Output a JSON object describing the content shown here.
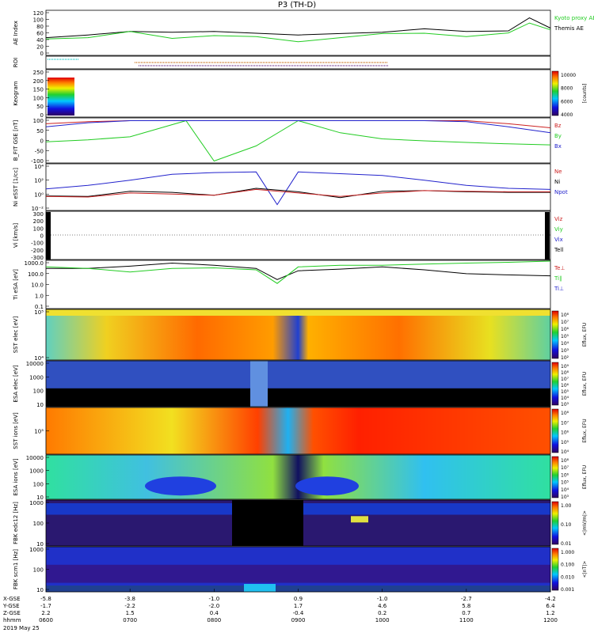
{
  "title": "P3 (TH-D)",
  "date_label": "2019 May 25",
  "x_axis": {
    "rows": [
      {
        "label": "X-GSE",
        "values": [
          "-5.8",
          "-3.8",
          "-1.0",
          "0.9",
          "-1.0",
          "-2.7",
          "-4.2"
        ]
      },
      {
        "label": "Y-GSE",
        "values": [
          "-1.7",
          "-2.2",
          "-2.0",
          "1.7",
          "4.6",
          "5.8",
          "6.4"
        ]
      },
      {
        "label": "Z-GSE",
        "values": [
          "2.2",
          "1.5",
          "0.4",
          "-0.4",
          "0.2",
          "0.7",
          "1.2"
        ]
      },
      {
        "label": "hhmm",
        "values": [
          "0600",
          "0700",
          "0800",
          "0900",
          "1000",
          "1100",
          "1200"
        ]
      }
    ]
  },
  "panels": [
    {
      "id": "ae",
      "ylabel": "AE Index",
      "ticks": [
        "120",
        "100",
        "80",
        "60",
        "40",
        "20",
        "0"
      ],
      "legend": [
        {
          "text": "Kyoto proxy AE",
          "color": "#22cc22"
        },
        {
          "text": "Themis AE",
          "color": "#000000"
        }
      ]
    },
    {
      "id": "roi",
      "ylabel": "ROI",
      "ticks": [],
      "legend": []
    },
    {
      "id": "keogram",
      "ylabel": "Keogram",
      "ticks": [
        "250",
        "200",
        "150",
        "100",
        "50",
        "0"
      ],
      "legend": [],
      "colorbar": {
        "ticks": [
          "10000",
          "8000",
          "6000",
          "4000"
        ],
        "label": "[counts]"
      }
    },
    {
      "id": "bfit",
      "ylabel": "B_FIT GSE [nT]",
      "ticks": [
        "100",
        "50",
        "0",
        "-50",
        "-100"
      ],
      "legend": [
        {
          "text": "Bz",
          "color": "#cc2222"
        },
        {
          "text": "By",
          "color": "#22cc22"
        },
        {
          "text": "Bx",
          "color": "#2222cc"
        }
      ]
    },
    {
      "id": "ni",
      "ylabel": "Ni eSST [1/cc]",
      "ticks": [
        "10⁴",
        "10²",
        "10⁰",
        "10⁻²"
      ],
      "legend": [
        {
          "text": "Ne",
          "color": "#cc2222"
        },
        {
          "text": "Ni",
          "color": "#000000"
        },
        {
          "text": "Npot",
          "color": "#2222cc"
        }
      ]
    },
    {
      "id": "vi",
      "ylabel": "Vi [km/s]",
      "ticks": [
        "300",
        "200",
        "100",
        "0",
        "-100",
        "-200",
        "-300"
      ],
      "legend": [
        {
          "text": "Viz",
          "color": "#cc2222"
        },
        {
          "text": "Viy",
          "color": "#22cc22"
        },
        {
          "text": "Vix",
          "color": "#2222cc"
        },
        {
          "text": "Tell",
          "color": "#000000"
        }
      ]
    },
    {
      "id": "ti",
      "ylabel": "Ti eSA [eV]",
      "ticks": [
        "1000.0",
        "100.0",
        "10.0",
        "1.0",
        "0.1"
      ],
      "legend": [
        {
          "text": "Te⊥",
          "color": "#cc2222"
        },
        {
          "text": "Ti∥",
          "color": "#22cc22"
        },
        {
          "text": "Ti⊥",
          "color": "#2222cc"
        }
      ]
    },
    {
      "id": "sst-e",
      "ylabel": "SST elec [eV]",
      "ticks": [
        "10⁵",
        "10⁴"
      ],
      "legend": [],
      "colorbar": {
        "ticks": [
          "10⁸",
          "10⁷",
          "10⁶",
          "10⁵",
          "10⁴",
          "10³",
          "10²"
        ],
        "label": "Eflux, EFU"
      }
    },
    {
      "id": "esa-e",
      "ylabel": "ESA elec [eV]",
      "ticks": [
        "10000",
        "1000",
        "100",
        "10"
      ],
      "legend": [],
      "colorbar": {
        "ticks": [
          "10⁹",
          "10⁸",
          "10⁷",
          "10⁶",
          "10⁵",
          "10⁴",
          "10³"
        ],
        "label": "Eflux, EFU"
      }
    },
    {
      "id": "sst-i",
      "ylabel": "SST ions [eV]",
      "ticks": [
        "10⁵"
      ],
      "legend": [],
      "colorbar": {
        "ticks": [
          "10⁸",
          "10⁷",
          "10⁶",
          "10⁵",
          "10⁴"
        ],
        "label": "Eflux, EFU"
      }
    },
    {
      "id": "esa-i",
      "ylabel": "ESA ions [eV]",
      "ticks": [
        "10000",
        "1000",
        "100",
        "10"
      ],
      "legend": [],
      "colorbar": {
        "ticks": [
          "10⁸",
          "10⁷",
          "10⁶",
          "10⁵",
          "10⁴",
          "10³"
        ],
        "label": "Eflux, EFU"
      }
    },
    {
      "id": "fbk-e",
      "ylabel": "FBK edc12 [Hz]",
      "ticks": [
        "1000",
        "100",
        "10"
      ],
      "legend": [],
      "colorbar": {
        "ticks": [
          "1.00",
          "0.10",
          "0.01"
        ],
        "label": "<|mV/m|>"
      }
    },
    {
      "id": "fbk-b",
      "ylabel": "FBK scm1 [Hz]",
      "ticks": [
        "1000",
        "100",
        "10"
      ],
      "legend": [],
      "colorbar": {
        "ticks": [
          "1.000",
          "0.100",
          "0.010",
          "0.001"
        ],
        "label": "<|nT|>"
      }
    }
  ],
  "chart_data": {
    "type": "line",
    "title": "P3 (TH-D)",
    "x_ticks": [
      "0600",
      "0700",
      "0800",
      "0900",
      "1000",
      "1100",
      "1200"
    ],
    "series": [
      {
        "name": "Themis AE",
        "panel": "ae",
        "x": [
          "0600",
          "0630",
          "0700",
          "0730",
          "0800",
          "0830",
          "0900",
          "0930",
          "1000",
          "1030",
          "1100",
          "1130",
          "1145",
          "1200"
        ],
        "values": [
          52,
          60,
          70,
          68,
          70,
          65,
          60,
          64,
          68,
          78,
          70,
          72,
          110,
          80
        ]
      },
      {
        "name": "Kyoto proxy AE",
        "panel": "ae",
        "x": [
          "0600",
          "0630",
          "0700",
          "0730",
          "0800",
          "0830",
          "0900",
          "0930",
          "1000",
          "1030",
          "1100",
          "1130",
          "1145",
          "1200"
        ],
        "values": [
          48,
          52,
          70,
          50,
          58,
          55,
          40,
          52,
          64,
          65,
          55,
          66,
          95,
          75
        ]
      },
      {
        "name": "Bz",
        "panel": "bfit",
        "x": [
          "0600",
          "0630",
          "0700",
          "0730",
          "1030",
          "1100",
          "1130",
          "1200"
        ],
        "values": [
          85,
          95,
          100,
          100,
          100,
          100,
          85,
          65
        ]
      },
      {
        "name": "By",
        "panel": "bfit",
        "x": [
          "0600",
          "0630",
          "0700",
          "0740",
          "0800",
          "0830",
          "0900",
          "0930",
          "1000",
          "1030",
          "1100",
          "1130",
          "1200"
        ],
        "values": [
          -5,
          5,
          20,
          100,
          -100,
          -25,
          100,
          40,
          10,
          0,
          -8,
          -15,
          -20
        ]
      },
      {
        "name": "Bx",
        "panel": "bfit",
        "x": [
          "0600",
          "0630",
          "0700",
          "0730",
          "1030",
          "1100",
          "1130",
          "1200"
        ],
        "values": [
          70,
          90,
          100,
          100,
          100,
          95,
          70,
          40
        ]
      },
      {
        "name": "Npot",
        "panel": "ni",
        "x": [
          "0600",
          "0630",
          "0700",
          "0730",
          "0800",
          "0830",
          "0845",
          "0900",
          "0930",
          "1000",
          "1030",
          "1100",
          "1130",
          "1200"
        ],
        "values": [
          0.7,
          1.3,
          2.2,
          3.2,
          3.5,
          3.6,
          -2,
          3.6,
          3.3,
          3.0,
          2.2,
          1.3,
          0.8,
          0.6
        ]
      },
      {
        "name": "Ni",
        "panel": "ni",
        "x": [
          "0600",
          "0630",
          "0700",
          "0730",
          "0800",
          "0830",
          "0900",
          "0930",
          "1000",
          "1030",
          "1100",
          "1130",
          "1200"
        ],
        "values": [
          -0.5,
          -0.6,
          0.3,
          0.1,
          -0.4,
          0.8,
          0.2,
          -0.8,
          0.3,
          0.4,
          0.2,
          0.1,
          0.1
        ]
      },
      {
        "name": "Ne",
        "panel": "ni",
        "x": [
          "0600",
          "0630",
          "0700",
          "0730",
          "0800",
          "0830",
          "0900",
          "0930",
          "1000",
          "1030",
          "1100",
          "1130",
          "1200"
        ],
        "values": [
          -0.6,
          -0.7,
          0.0,
          -0.2,
          -0.4,
          0.6,
          0.0,
          -0.6,
          0.0,
          0.4,
          0.3,
          0.2,
          0.2
        ]
      },
      {
        "name": "Tell",
        "panel": "ti",
        "x": [
          "0600",
          "0630",
          "0700",
          "0730",
          "0800",
          "0830",
          "0845",
          "0900",
          "0930",
          "1000",
          "1030",
          "1100",
          "1130",
          "1200"
        ],
        "values": [
          700,
          700,
          1200,
          2500,
          1500,
          700,
          50,
          400,
          600,
          1000,
          500,
          200,
          150,
          120
        ]
      },
      {
        "name": "Ti∥",
        "panel": "ti",
        "x": [
          "0600",
          "0630",
          "0700",
          "0730",
          "0800",
          "0830",
          "0845",
          "0900",
          "0930",
          "1000",
          "1030",
          "1100",
          "1130",
          "1200"
        ],
        "values": [
          1000,
          700,
          300,
          700,
          800,
          500,
          20,
          1000,
          1500,
          1500,
          2000,
          2500,
          3000,
          4000
        ]
      }
    ]
  }
}
